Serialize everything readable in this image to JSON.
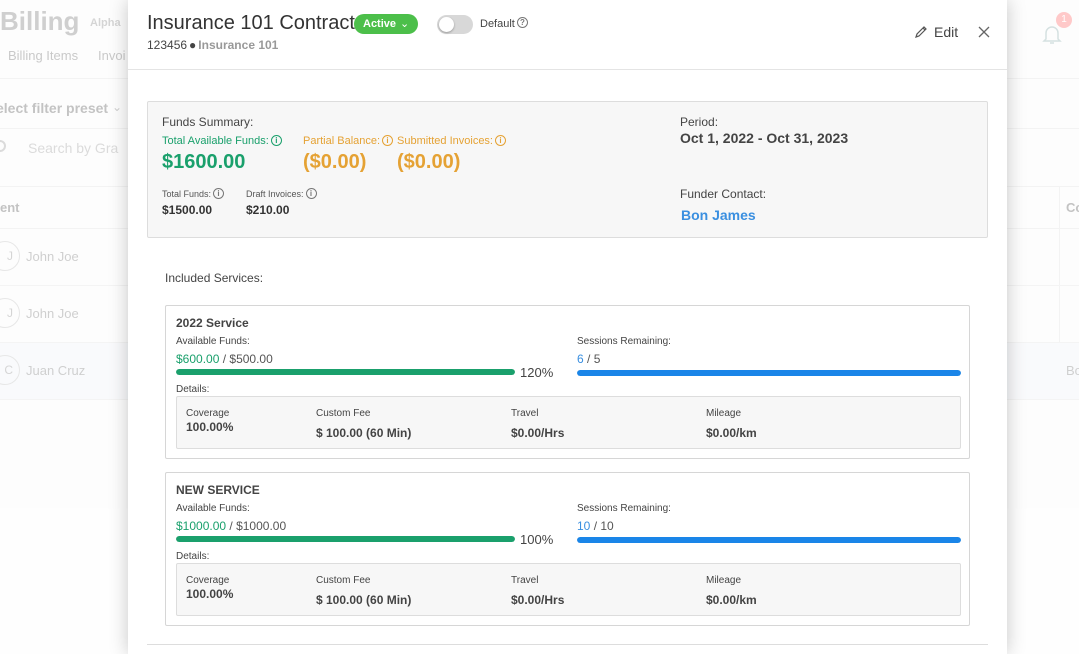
{
  "background": {
    "app_title": "Billing",
    "app_badge": "Alpha",
    "nav": [
      "Billing Items",
      "Invoi"
    ],
    "filter_preset": "elect filter preset",
    "search_placeholder": "Search by Gra",
    "column_left": "ent",
    "column_right": "Co",
    "notification_count": "1",
    "rows": [
      {
        "avatar": "J",
        "name": "John Joe",
        "tail": ""
      },
      {
        "avatar": "J",
        "name": "John Joe",
        "tail": ""
      },
      {
        "avatar": "C",
        "name": "Juan Cruz",
        "tail": "Bo"
      }
    ]
  },
  "modal": {
    "title": "Insurance 101 Contract",
    "status": "Active",
    "default_label": "Default",
    "contract_id": "123456",
    "program": "Insurance 101",
    "edit_label": "Edit",
    "funds_summary": {
      "label": "Funds Summary:",
      "total_available_label": "Total Available Funds:",
      "total_available": "$1600.00",
      "partial_balance_label": "Partial Balance:",
      "partial_balance": "($0.00)",
      "submitted_invoices_label": "Submitted Invoices:",
      "submitted_invoices": "($0.00)",
      "total_funds_label": "Total Funds:",
      "total_funds": "$1500.00",
      "draft_invoices_label": "Draft Invoices:",
      "draft_invoices": "$210.00",
      "period_label": "Period:",
      "period": "Oct 1, 2022 - Oct 31, 2023",
      "funder_contact_label": "Funder Contact:",
      "funder_contact": "Bon James"
    },
    "included_services_label": "Included Services:",
    "services": [
      {
        "name": "2022 Service",
        "available_funds_label": "Available Funds:",
        "available": "$600.00",
        "total": "$500.00",
        "funds_percent_label": "120%",
        "funds_fill": 1.0,
        "sessions_label": "Sessions Remaining:",
        "sessions_remaining": "6",
        "sessions_total": "5",
        "sessions_fill": 1.0,
        "details_label": "Details:",
        "coverage_label": "Coverage",
        "coverage": "100.00%",
        "custom_fee_label": "Custom Fee",
        "custom_fee": "$ 100.00 (60 Min)",
        "travel_label": "Travel",
        "travel": "$0.00/Hrs",
        "mileage_label": "Mileage",
        "mileage": "$0.00/km"
      },
      {
        "name": "NEW SERVICE",
        "available_funds_label": "Available Funds:",
        "available": "$1000.00",
        "total": "$1000.00",
        "funds_percent_label": "100%",
        "funds_fill": 1.0,
        "sessions_label": "Sessions Remaining:",
        "sessions_remaining": "10",
        "sessions_total": "10",
        "sessions_fill": 1.0,
        "details_label": "Details:",
        "coverage_label": "Coverage",
        "coverage": "100.00%",
        "custom_fee_label": "Custom Fee",
        "custom_fee": "$ 100.00 (60 Min)",
        "travel_label": "Travel",
        "travel": "$0.00/Hrs",
        "mileage_label": "Mileage",
        "mileage": "$0.00/km"
      }
    ]
  },
  "colors": {
    "green": "#1aa06c",
    "orange": "#e5a234",
    "blue": "#1a85e8",
    "status_green": "#4cbf4a"
  },
  "icons": [
    "info-icon",
    "help-icon",
    "pencil-icon",
    "close-icon",
    "bell-icon",
    "search-icon",
    "chevron-down-icon"
  ]
}
